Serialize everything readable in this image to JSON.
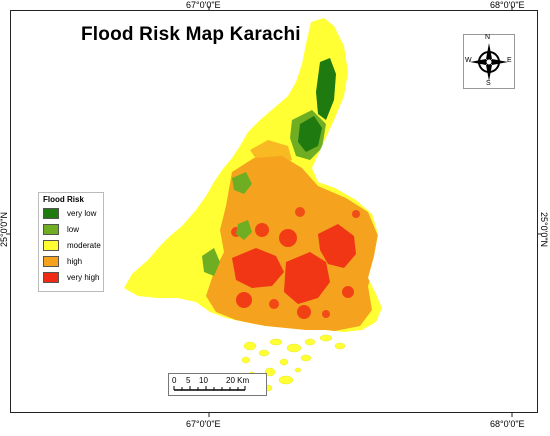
{
  "title": "Flood Risk Map Karachi",
  "graticule": {
    "top_left": "67°0'0\"E",
    "top_right": "68°0'0\"E",
    "bottom_left": "67°0'0\"E",
    "bottom_right": "68°0'0\"E",
    "left": "25°0'0\"N",
    "right": "25°0'0\"N"
  },
  "legend": {
    "title": "Flood Risk",
    "items": [
      {
        "label": "very low",
        "color": "#1f7a10"
      },
      {
        "label": "low",
        "color": "#6fae22"
      },
      {
        "label": "moderate",
        "color": "#ffff33"
      },
      {
        "label": "high",
        "color": "#f5a21f"
      },
      {
        "label": "very high",
        "color": "#f02a14"
      }
    ]
  },
  "compass": {
    "n": "N",
    "s": "S",
    "e": "E",
    "w": "W"
  },
  "scale_bar": {
    "labels": [
      "0",
      "5",
      "10",
      "20 Km"
    ]
  },
  "colors": {
    "very_low": "#1f7a10",
    "low": "#6fae22",
    "moderate": "#ffff33",
    "high": "#f5a21f",
    "very_high": "#f02a14"
  }
}
